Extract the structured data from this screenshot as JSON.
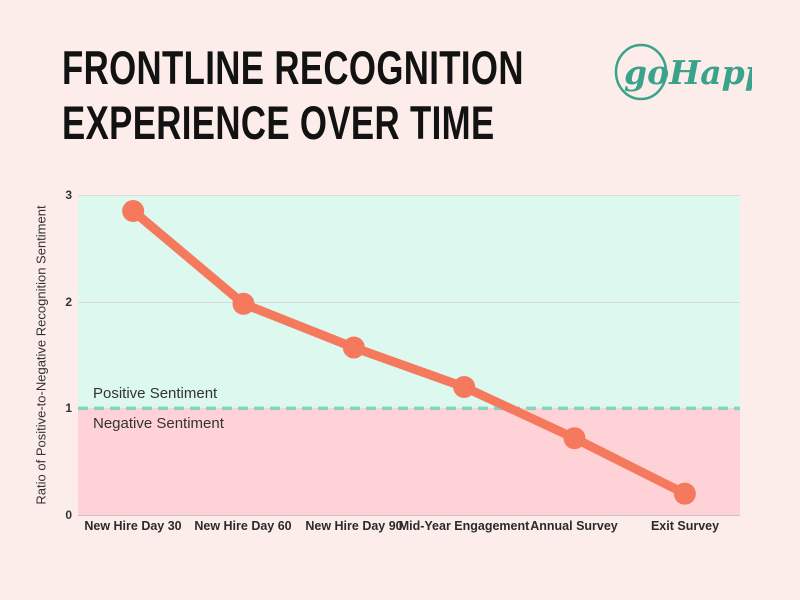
{
  "page": {
    "background": "#fcedea"
  },
  "header": {
    "title_line1": "FRONTLINE RECOGNITION",
    "title_line2": "EXPERIENCE OVER TIME",
    "text_color": "#121212"
  },
  "logo": {
    "text": "goHappy",
    "color": "#3ba28c"
  },
  "chart_data": {
    "type": "line",
    "title": "Frontline Recognition Experience Over Time",
    "categories": [
      "New Hire Day 30",
      "New Hire Day 60",
      "New Hire Day 90",
      "Mid-Year Engagement",
      "Annual Survey",
      "Exit Survey"
    ],
    "values": [
      2.85,
      1.98,
      1.57,
      1.2,
      0.72,
      0.2
    ],
    "xlabel": "",
    "ylabel": "Ratio of Positive-to-Negative Recognition Sentiment",
    "ylim": [
      0,
      3
    ],
    "yticks": [
      0,
      1,
      2,
      3
    ],
    "grid": true,
    "legend": false,
    "threshold": {
      "value": 1,
      "above_label": "Positive Sentiment",
      "below_label": "Negative Sentiment"
    },
    "colors": {
      "line": "#f5795c",
      "threshold_dash": "#85d5bf",
      "band_above": "#ddf8ef",
      "band_below": "#ffd2d8",
      "gridline": "#d9ddda",
      "axis_line": "#c8c5c3",
      "tick_text": "#333333"
    }
  }
}
